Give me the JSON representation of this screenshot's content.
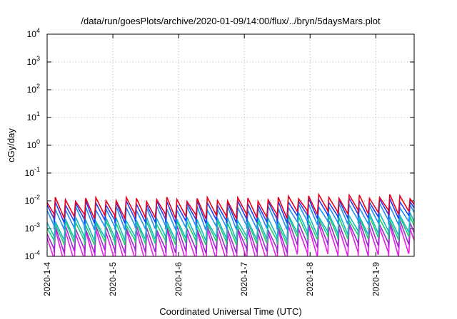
{
  "chart_data": {
    "type": "line",
    "title": "/data/run/goesPlots/archive/2020-01-09/14:00/flux/../bryn/5daysMars.plot",
    "xlabel": "Coordinated Universal Time (UTC)",
    "ylabel": "cGy/day",
    "x_ticks": [
      "2020-1-4",
      "2020-1-5",
      "2020-1-6",
      "2020-1-7",
      "2020-1-8",
      "2020-1-9"
    ],
    "xlim": [
      "2020-01-04T00:00",
      "2020-01-09T14:00"
    ],
    "y_scale": "log",
    "ylim": [
      0.0001,
      10000
    ],
    "y_ticks": [
      {
        "base": "10",
        "exp": "-4",
        "value": 0.0001
      },
      {
        "base": "10",
        "exp": "-3",
        "value": 0.001
      },
      {
        "base": "10",
        "exp": "-2",
        "value": 0.01
      },
      {
        "base": "10",
        "exp": "-1",
        "value": 0.1
      },
      {
        "base": "10",
        "exp": "0",
        "value": 1
      },
      {
        "base": "10",
        "exp": "1",
        "value": 10
      },
      {
        "base": "10",
        "exp": "2",
        "value": 100
      },
      {
        "base": "10",
        "exp": "3",
        "value": 1000
      },
      {
        "base": "10",
        "exp": "4",
        "value": 10000
      }
    ],
    "grid": true,
    "series": [
      {
        "color": "#e8001c",
        "peak": 0.0115,
        "trough": 0.0028,
        "hi_peak": 0.0145,
        "hi_trough": 0.004
      },
      {
        "color": "#1f3ef0",
        "peak": 0.0085,
        "trough": 0.0019,
        "hi_peak": 0.0105,
        "hi_trough": 0.0028
      },
      {
        "color": "#1e8ef0",
        "peak": 0.0055,
        "trough": 0.0011,
        "hi_peak": 0.0068,
        "hi_trough": 0.0017
      },
      {
        "color": "#18b7c0",
        "peak": 0.0022,
        "trough": 0.00045,
        "hi_peak": 0.0032,
        "hi_trough": 0.0007
      },
      {
        "color": "#1ecf6a",
        "peak": 0.0016,
        "trough": 0.00032,
        "hi_peak": 0.0024,
        "hi_trough": 0.0005
      },
      {
        "color": "#9b2bd0",
        "peak": 0.0011,
        "trough": 0.00016,
        "hi_peak": 0.0017,
        "hi_trough": 0.00026
      },
      {
        "color": "#e61ee6",
        "peak": 0.0008,
        "trough": 7e-05,
        "hi_peak": 0.0012,
        "hi_trough": 0.00012
      }
    ],
    "cycle_hours": 3.7
  }
}
